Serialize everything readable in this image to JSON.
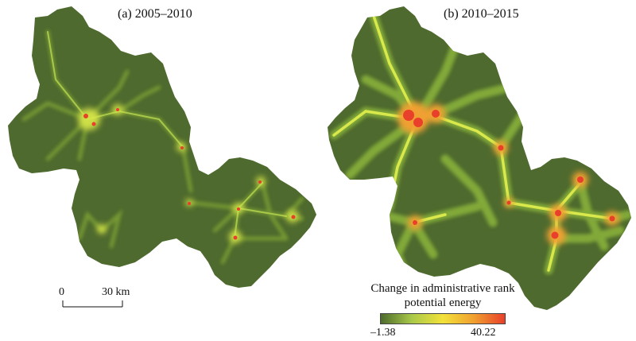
{
  "panels": [
    {
      "id": "a",
      "title": "(a) 2005–2010"
    },
    {
      "id": "b",
      "title": "(b) 2010–2015"
    }
  ],
  "scale_bar": {
    "start": "0",
    "end": "30 km"
  },
  "legend": {
    "title_line1": "Change in administrative rank",
    "title_line2": "potential energy",
    "min": "–1.38",
    "max": "40.22",
    "colors": [
      "#4d6b2c",
      "#a9c94a",
      "#f2e23a",
      "#f0a030",
      "#e8402a"
    ]
  },
  "colors": {
    "land": "#4e6a2e",
    "road_low": "#88b13a",
    "road_mid": "#d9e84a",
    "hot": "#e8402a"
  }
}
